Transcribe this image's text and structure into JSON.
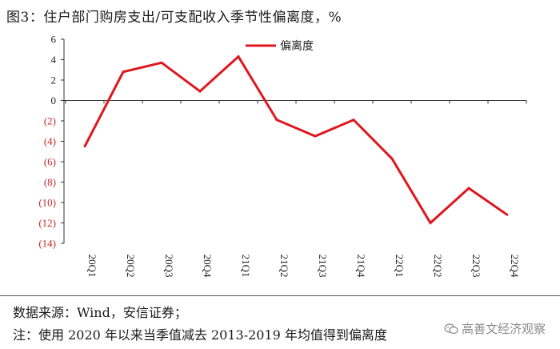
{
  "header": {
    "title": "图3：住户部门购房支出/可支配收入季节性偏离度，%"
  },
  "chart_data": {
    "type": "line",
    "categories": [
      "20Q1",
      "20Q2",
      "20Q3",
      "20Q4",
      "21Q1",
      "21Q2",
      "21Q3",
      "21Q4",
      "22Q1",
      "22Q2",
      "22Q3",
      "22Q4"
    ],
    "series": [
      {
        "name": "偏离度",
        "values": [
          -4.5,
          2.8,
          3.7,
          0.9,
          4.3,
          -1.9,
          -3.5,
          -1.9,
          -5.7,
          -12.0,
          -8.6,
          -11.2
        ],
        "color": "#e0161e"
      }
    ],
    "y_ticks": [
      "6",
      "4",
      "2",
      "0",
      "(2)",
      "(4)",
      "(6)",
      "(8)",
      "(10)",
      "(12)",
      "(14)"
    ],
    "ylim": [
      -14,
      6
    ],
    "grid": false,
    "legend_position": "top-center"
  },
  "footer": {
    "source": "数据来源：Wind，安信证券；",
    "note": "注：使用 2020 年以来当季值减去 2013-2019 年均值得到偏离度",
    "watermark": "高善文经济观察",
    "watermark_icon": "wechat-icon"
  }
}
